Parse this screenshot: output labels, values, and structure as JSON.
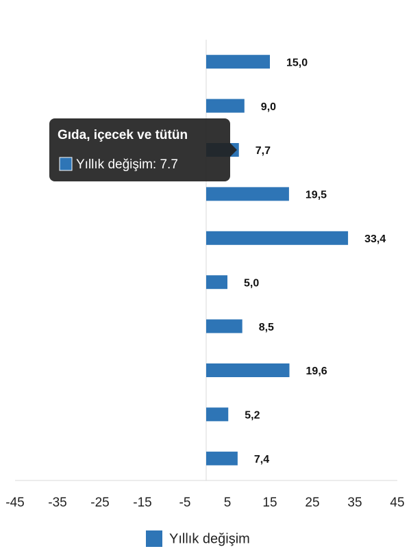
{
  "chart_data": {
    "type": "barh",
    "categories": [
      null,
      null,
      "Gıda, içecek ve tütün",
      null,
      null,
      null,
      null,
      null,
      null,
      null
    ],
    "series": [
      {
        "name": "Yıllık değişim",
        "color": "#2e75b6",
        "values": [
          15.0,
          9.0,
          7.7,
          19.5,
          33.4,
          5.0,
          8.5,
          19.6,
          5.2,
          7.4
        ],
        "value_labels": [
          "15,0",
          "9,0",
          "7,7",
          "19,5",
          "33,4",
          "5,0",
          "8,5",
          "19,6",
          "5,2",
          "7,4"
        ]
      }
    ],
    "xlim": [
      -45,
      45
    ],
    "xticks": [
      -45,
      -35,
      -25,
      -15,
      -5,
      5,
      15,
      25,
      35,
      45
    ],
    "legend": "bottom",
    "tooltip_text": "Yıllık değişim: 7.7"
  }
}
